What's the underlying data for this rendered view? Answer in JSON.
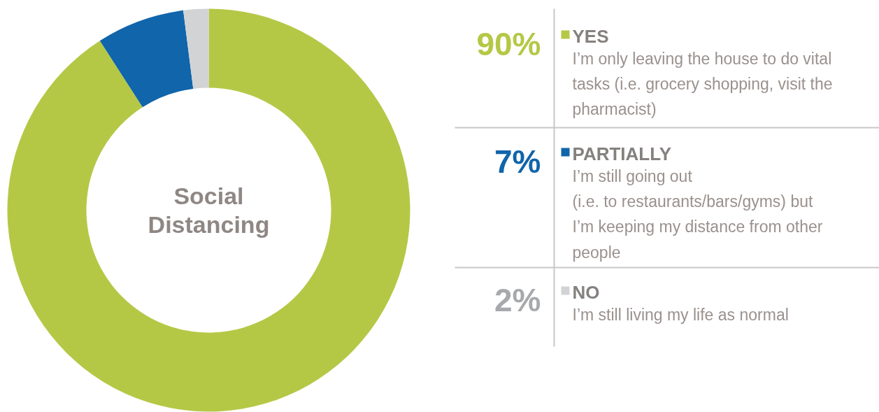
{
  "chart_data": {
    "type": "donut",
    "title": "Social Distancing",
    "categories": [
      "YES",
      "PARTIALLY",
      "NO"
    ],
    "values": [
      90,
      7,
      2
    ],
    "value_labels": [
      "90%",
      "7%",
      "2%"
    ],
    "colors": [
      "#b5c846",
      "#1165ab",
      "#d1d3d4"
    ],
    "legend": "right",
    "annotations": [
      "I’m only leaving the house to do vital\ntasks (i.e. grocery shopping, visit the\npharmacist)",
      "I’m still going out\n(i.e. to restaurants/bars/gyms) but\nI’m keeping my distance from other\npeople",
      "I’m still living my life as normal"
    ]
  }
}
